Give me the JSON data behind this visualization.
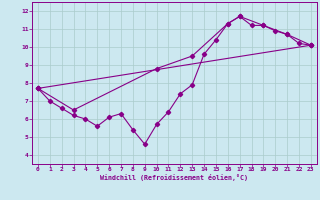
{
  "xlabel": "Windchill (Refroidissement éolien,°C)",
  "bg_color": "#cce8f0",
  "line_color": "#880088",
  "grid_color": "#aacccc",
  "xlim": [
    -0.5,
    23.5
  ],
  "ylim": [
    3.5,
    12.5
  ],
  "yticks": [
    4,
    5,
    6,
    7,
    8,
    9,
    10,
    11,
    12
  ],
  "xticks": [
    0,
    1,
    2,
    3,
    4,
    5,
    6,
    7,
    8,
    9,
    10,
    11,
    12,
    13,
    14,
    15,
    16,
    17,
    18,
    19,
    20,
    21,
    22,
    23
  ],
  "line1_x": [
    0,
    1,
    2,
    3,
    4,
    5,
    6,
    7,
    8,
    9,
    10,
    11,
    12,
    13,
    14,
    15,
    16,
    17,
    18,
    19,
    20,
    21,
    22,
    23
  ],
  "line1_y": [
    7.7,
    7.0,
    6.6,
    6.2,
    6.0,
    5.6,
    6.1,
    6.3,
    5.4,
    4.6,
    5.7,
    6.4,
    7.4,
    7.9,
    9.6,
    10.4,
    11.3,
    11.7,
    11.2,
    11.2,
    10.9,
    10.7,
    10.2,
    10.1
  ],
  "line2_x": [
    0,
    3,
    10,
    13,
    16,
    17,
    19,
    21,
    23
  ],
  "line2_y": [
    7.7,
    6.5,
    8.8,
    9.5,
    11.3,
    11.7,
    11.2,
    10.7,
    10.1
  ],
  "line3_x": [
    0,
    23
  ],
  "line3_y": [
    7.7,
    10.1
  ]
}
